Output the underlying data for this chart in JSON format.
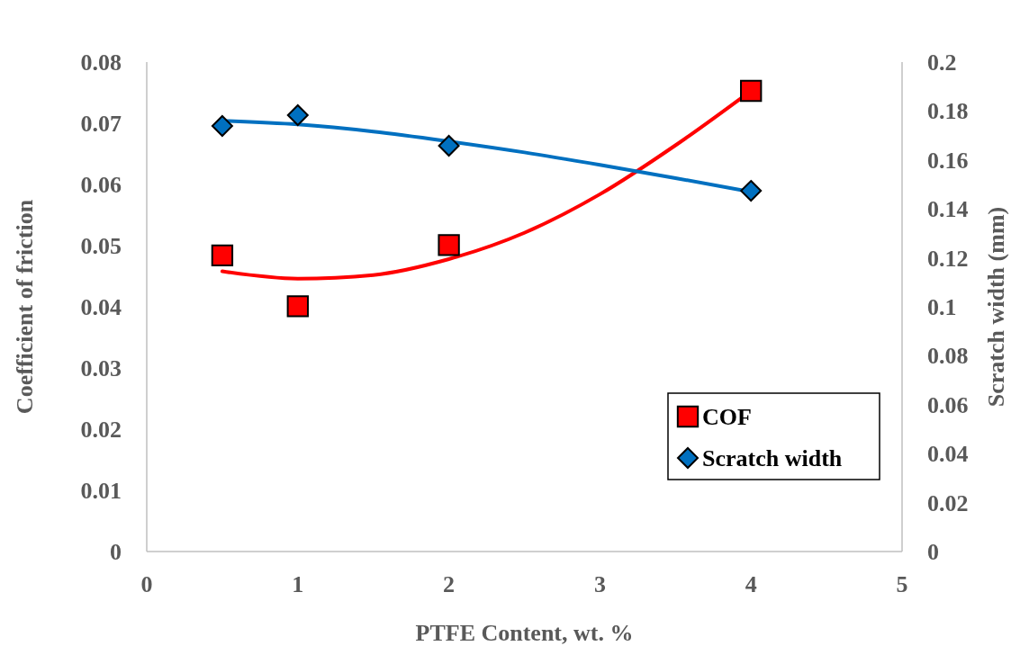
{
  "chart_data": {
    "type": "scatter",
    "xlabel": "PTFE Content, wt. %",
    "ylabel": "Coefficient of friction",
    "y2label": "Scratch width (mm)",
    "xlim": [
      0,
      5
    ],
    "xticks": [
      0,
      1,
      2,
      3,
      4,
      5
    ],
    "ylim": [
      0,
      0.08
    ],
    "yticks": [
      0,
      0.01,
      0.02,
      0.03,
      0.04,
      0.05,
      0.06,
      0.07,
      0.08
    ],
    "y2lim": [
      0,
      0.2
    ],
    "y2ticks": [
      0,
      0.02,
      0.04,
      0.06,
      0.08,
      0.1,
      0.12,
      0.14,
      0.16,
      0.18,
      0.2
    ],
    "grid": false,
    "legend": "bottom right",
    "series": [
      {
        "type": "line",
        "color": "#ff0000",
        "marker": "none",
        "x": [
          0.5,
          1,
          1.5,
          2,
          2.5,
          3,
          3.5,
          4
        ],
        "values": [
          0.0458,
          0.0446,
          0.0452,
          0.0478,
          0.0521,
          0.0584,
          0.0664,
          0.0753
        ]
      },
      {
        "type": "line",
        "color": "#0070c0",
        "marker": "none",
        "axis": "y2",
        "x": [
          0.5,
          1,
          1.5,
          2,
          2.5,
          3,
          3.5,
          4
        ],
        "values": [
          0.176,
          0.1745,
          0.1716,
          0.1676,
          0.1631,
          0.158,
          0.1526,
          0.147
        ]
      },
      {
        "type": "scatter",
        "name": "COF",
        "color": "#ff0000",
        "marker": "square",
        "x": [
          0.5,
          1,
          2,
          4
        ],
        "values": [
          0.0484,
          0.0401,
          0.0501,
          0.0753
        ]
      },
      {
        "type": "scatter",
        "name": "Scratch width",
        "color": "#0070c0",
        "marker": "diamond",
        "axis": "y2",
        "x": [
          0.5,
          1,
          2,
          4
        ],
        "values": [
          0.1739,
          0.1783,
          0.1658,
          0.1474
        ]
      }
    ]
  }
}
